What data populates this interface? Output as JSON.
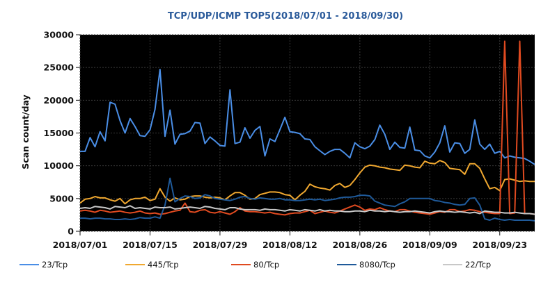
{
  "chart_data": {
    "type": "line",
    "title": "TCP/UDP/ICMP TOP5(2018/07/01 - 2018/09/30)",
    "ylabel": "Scan count/day",
    "xlabel": "",
    "ylim": [
      0,
      30000
    ],
    "yticks": [
      0,
      5000,
      10000,
      15000,
      20000,
      25000,
      30000
    ],
    "xticks": [
      "2018/07/01",
      "2018/07/15",
      "2018/07/29",
      "2018/08/12",
      "2018/08/26",
      "2018/09/09",
      "2018/09/23"
    ],
    "x_start": "2018/07/01",
    "x_end": "2018/09/30",
    "background": "#000000",
    "grid": true,
    "legend_position": "bottom",
    "series": [
      {
        "name": "23/Tcp",
        "color": "#4a8ee6",
        "values": [
          12200,
          12200,
          14300,
          12900,
          15200,
          13800,
          19700,
          19400,
          16900,
          15000,
          17200,
          16000,
          14600,
          14500,
          15500,
          18600,
          24700,
          14500,
          18500,
          13300,
          14800,
          14900,
          15300,
          16600,
          16500,
          13400,
          14400,
          13800,
          13100,
          13000,
          21600,
          13400,
          13600,
          15800,
          14200,
          15400,
          16000,
          11500,
          14100,
          13700,
          15500,
          17400,
          15200,
          15100,
          14900,
          14100,
          14000,
          12900,
          12300,
          11700,
          12200,
          12500,
          12500,
          11900,
          11200,
          13500,
          12900,
          12600,
          13000,
          14000,
          16200,
          14800,
          12500,
          13600,
          12800,
          12700,
          15900,
          12400,
          12300,
          11500,
          11200,
          12100,
          13500,
          16100,
          12100,
          13500,
          13400,
          11900,
          12500,
          17000,
          13300,
          12500,
          13300,
          11900,
          12200,
          11200,
          11500,
          11300,
          11200,
          11100,
          10700,
          10200
        ]
      },
      {
        "name": "445/Tcp",
        "color": "#f0a830",
        "values": [
          4300,
          4900,
          5000,
          5300,
          5100,
          5100,
          4800,
          4600,
          5000,
          4200,
          4800,
          5000,
          5000,
          5200,
          4700,
          4900,
          6500,
          5200,
          4600,
          5100,
          4800,
          4900,
          5300,
          5400,
          5400,
          5200,
          5100,
          5200,
          5100,
          4800,
          5400,
          5900,
          5900,
          5500,
          4900,
          5000,
          5600,
          5800,
          6000,
          6000,
          5900,
          5600,
          5500,
          4800,
          5500,
          6100,
          7200,
          6800,
          6600,
          6500,
          6300,
          7000,
          7300,
          6700,
          7000,
          7900,
          8900,
          9800,
          10100,
          10000,
          9800,
          9700,
          9500,
          9400,
          9300,
          10100,
          10000,
          9800,
          9700,
          10700,
          10400,
          10300,
          10800,
          10500,
          9600,
          9500,
          9400,
          8700,
          10300,
          10300,
          9600,
          8000,
          6500,
          6700,
          6200,
          7900,
          8000,
          7800,
          7600,
          7700,
          7600,
          7600
        ]
      },
      {
        "name": "80/Tcp",
        "color": "#e04a20",
        "values": [
          3100,
          3200,
          3100,
          2900,
          3200,
          3100,
          2900,
          3000,
          3100,
          2900,
          2800,
          2900,
          3100,
          2800,
          2700,
          2800,
          2600,
          2700,
          2900,
          3100,
          3200,
          4300,
          3000,
          2900,
          3200,
          3300,
          2900,
          2800,
          3000,
          2800,
          2600,
          3000,
          3600,
          3100,
          3000,
          3000,
          2900,
          2800,
          2900,
          2700,
          2600,
          2500,
          2700,
          2800,
          2800,
          3000,
          3200,
          2700,
          2900,
          3100,
          2900,
          2800,
          3100,
          3400,
          3700,
          4000,
          3700,
          3200,
          3400,
          3300,
          3600,
          3300,
          3100,
          3000,
          3300,
          3300,
          3100,
          2900,
          2800,
          2700,
          2600,
          2800,
          3000,
          2900,
          3300,
          3300,
          3000,
          3100,
          3300,
          3200,
          3000,
          2900,
          2800,
          2700,
          2700,
          29000,
          2700,
          2800,
          29000,
          2700,
          2700,
          2600
        ]
      },
      {
        "name": "8080/Tcp",
        "color": "#1f5a9a",
        "values": [
          2000,
          2000,
          1900,
          2000,
          2000,
          1900,
          1900,
          1800,
          1800,
          1900,
          1800,
          1900,
          2100,
          2000,
          2000,
          2200,
          2000,
          4000,
          8100,
          4500,
          5000,
          5400,
          5300,
          5000,
          5100,
          5600,
          5400,
          5000,
          4900,
          4800,
          4700,
          4900,
          5200,
          5300,
          5000,
          4900,
          5100,
          5000,
          4900,
          4900,
          5000,
          4800,
          4800,
          4700,
          4700,
          4800,
          4900,
          4800,
          4900,
          4700,
          4800,
          4900,
          5100,
          5200,
          5200,
          5300,
          5500,
          5500,
          5400,
          4600,
          4300,
          4000,
          3900,
          3800,
          4200,
          4500,
          5000,
          5000,
          5000,
          5000,
          5000,
          4700,
          4600,
          4400,
          4300,
          4100,
          4000,
          4100,
          5000,
          5100,
          4000,
          1900,
          1700,
          2000,
          1800,
          1700,
          1800,
          1700,
          1700,
          1700,
          1700,
          1600
        ]
      },
      {
        "name": "22/Tcp",
        "color": "#c8c8c8",
        "values": [
          3500,
          3600,
          3500,
          3800,
          3700,
          3600,
          3400,
          3800,
          3700,
          3600,
          3900,
          3500,
          3600,
          3500,
          3400,
          3700,
          3600,
          3600,
          3700,
          3400,
          3500,
          3600,
          3700,
          3600,
          3500,
          3800,
          3700,
          3500,
          3400,
          3300,
          3600,
          3600,
          3400,
          3300,
          3300,
          3300,
          3200,
          3400,
          3300,
          3300,
          3200,
          3100,
          3300,
          3200,
          3100,
          3300,
          3200,
          3100,
          3300,
          3100,
          3200,
          3100,
          3100,
          3000,
          3000,
          3100,
          3100,
          3000,
          3200,
          3100,
          3100,
          3000,
          3100,
          3000,
          2900,
          3000,
          3000,
          3100,
          3000,
          2900,
          2800,
          3000,
          3100,
          3000,
          3000,
          2900,
          3000,
          2900,
          2800,
          2900,
          2700,
          3100,
          3000,
          2900,
          2900,
          2800,
          2800,
          2900,
          2800,
          2700,
          2700,
          2600
        ]
      }
    ]
  }
}
